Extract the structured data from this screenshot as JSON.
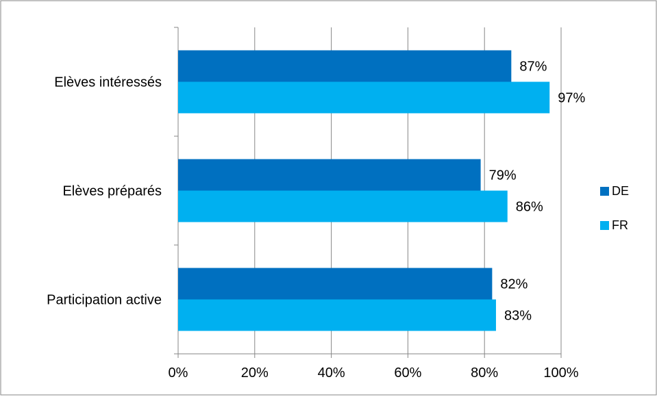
{
  "chart_data": {
    "type": "bar",
    "orientation": "horizontal",
    "categories": [
      "Elèves intéressés",
      "Elèves préparés",
      "Participation active"
    ],
    "series": [
      {
        "name": "DE",
        "values": [
          87,
          79,
          82
        ],
        "color": "#0070C0"
      },
      {
        "name": "FR",
        "values": [
          97,
          86,
          83
        ],
        "color": "#00B0F0"
      }
    ],
    "data_labels": {
      "DE": [
        "87%",
        "79%",
        "82%"
      ],
      "FR": [
        "97%",
        "86%",
        "83%"
      ]
    },
    "xlim": [
      0,
      100
    ],
    "xticks": [
      0,
      20,
      40,
      60,
      80,
      100
    ],
    "xtick_labels": [
      "0%",
      "20%",
      "40%",
      "60%",
      "80%",
      "100%"
    ],
    "grid": "vertical",
    "legend_position": "right",
    "title": "",
    "xlabel": "",
    "ylabel": ""
  }
}
